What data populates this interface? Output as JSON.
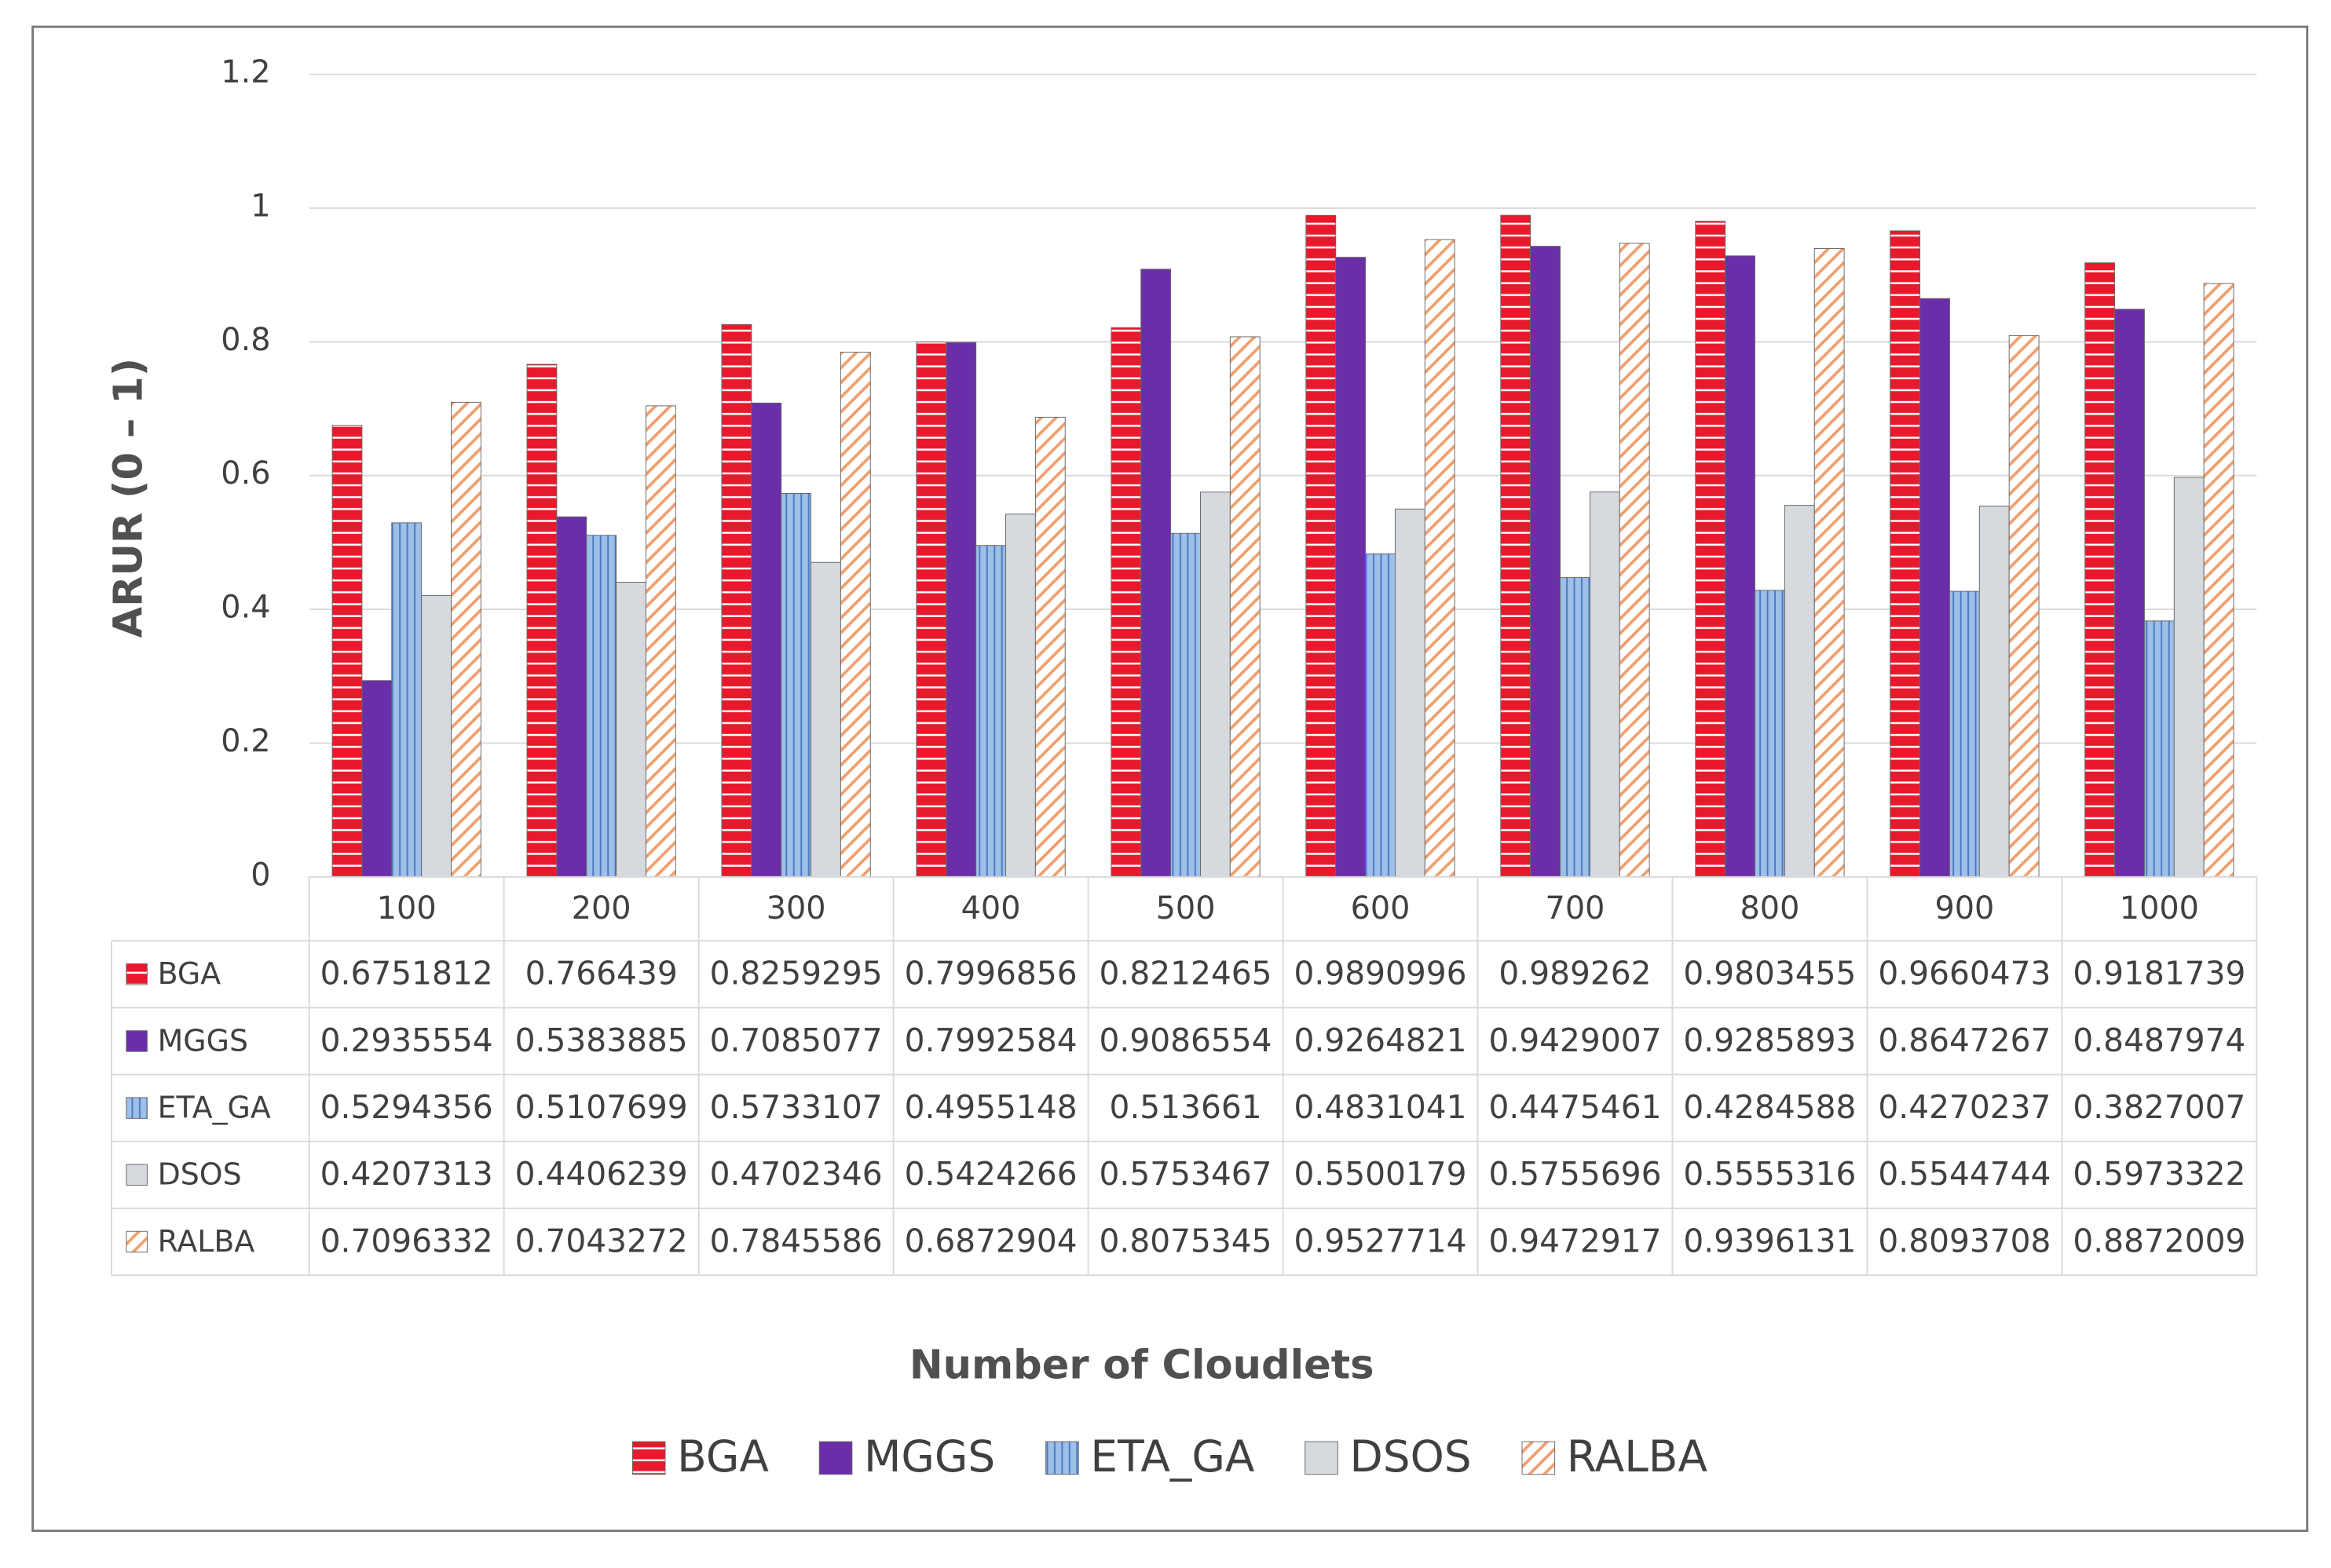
{
  "chart_data": {
    "type": "bar",
    "x_label": "Number of Cloudlets",
    "y_label": "ARUR (0 – 1)",
    "categories": [
      "100",
      "200",
      "300",
      "400",
      "500",
      "600",
      "700",
      "800",
      "900",
      "1000"
    ],
    "series": [
      {
        "name": "BGA",
        "color": "#e8192c",
        "hatch": "horizontal",
        "values": [
          0.6751812,
          0.766439,
          0.8259295,
          0.7996856,
          0.8212465,
          0.9890996,
          0.989262,
          0.9803455,
          0.9660473,
          0.9181739
        ]
      },
      {
        "name": "MGGS",
        "color": "#6a2fa8",
        "hatch": "none",
        "values": [
          0.2935554,
          0.5383885,
          0.7085077,
          0.7992584,
          0.9086554,
          0.9264821,
          0.9429007,
          0.9285893,
          0.8647267,
          0.8487974
        ]
      },
      {
        "name": "ETA_GA",
        "color": "#9dbfe8",
        "hatch": "vertical",
        "values": [
          0.5294356,
          0.5107699,
          0.5733107,
          0.4955148,
          0.513661,
          0.4831041,
          0.4475461,
          0.4284588,
          0.4270237,
          0.3827007
        ]
      },
      {
        "name": "DSOS",
        "color": "#d6d9de",
        "hatch": "none",
        "values": [
          0.4207313,
          0.4406239,
          0.4702346,
          0.5424266,
          0.5753467,
          0.5500179,
          0.5755696,
          0.5555316,
          0.5544744,
          0.5973322
        ]
      },
      {
        "name": "RALBA",
        "color": "#f0a070",
        "hatch": "diagonal",
        "values": [
          0.7096332,
          0.7043272,
          0.7845586,
          0.6872904,
          0.8075345,
          0.9527714,
          0.9472917,
          0.9396131,
          0.8093708,
          0.8872009
        ]
      }
    ],
    "ylim": [
      0,
      1.2
    ],
    "yticks": [
      0,
      0.2,
      0.4,
      0.6,
      0.8,
      1,
      1.2
    ],
    "grid": true,
    "legend": "bottom"
  }
}
